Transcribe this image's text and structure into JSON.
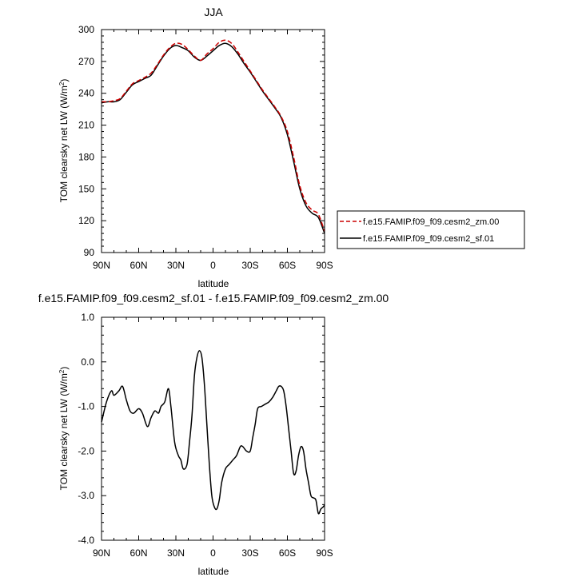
{
  "chart_data": [
    {
      "type": "line",
      "title": "JJA",
      "xlabel": "latitude",
      "ylabel": "TOM clearsky net LW (W/m²)",
      "xlim": [
        90,
        -90
      ],
      "ylim": [
        90,
        300
      ],
      "xticks": [
        "90N",
        "60N",
        "30N",
        "0",
        "30S",
        "60S",
        "90S"
      ],
      "yticks": [
        "90",
        "120",
        "150",
        "180",
        "210",
        "240",
        "270",
        "300"
      ],
      "legend_position": "right",
      "x": [
        90,
        85,
        80,
        75,
        70,
        65,
        60,
        55,
        50,
        45,
        40,
        35,
        30,
        25,
        20,
        15,
        10,
        5,
        0,
        -5,
        -10,
        -15,
        -20,
        -25,
        -30,
        -35,
        -40,
        -45,
        -50,
        -55,
        -60,
        -65,
        -70,
        -75,
        -80,
        -85,
        -90
      ],
      "series": [
        {
          "name": "f.e15.FAMIP.f09_f09.cesm2_zm.00",
          "color": "#cc0000",
          "dash": "dashed",
          "values": [
            232,
            232,
            233,
            235,
            242,
            249,
            252,
            255,
            259,
            267,
            276,
            283,
            287,
            286,
            281,
            275,
            271,
            277,
            282,
            288,
            290,
            287,
            279,
            270,
            261,
            252,
            243,
            235,
            227,
            218,
            204,
            180,
            153,
            137,
            130,
            126,
            110
          ]
        },
        {
          "name": "f.e15.FAMIP.f09_f09.cesm2_sf.01",
          "color": "#000000",
          "dash": "solid",
          "values": [
            231,
            232,
            232,
            234,
            241,
            248,
            251,
            254,
            257,
            266,
            275,
            282,
            285,
            283,
            280,
            274,
            271,
            275,
            280,
            285,
            287,
            284,
            277,
            268,
            260,
            251,
            242,
            234,
            226,
            217,
            201,
            176,
            150,
            134,
            127,
            123,
            108
          ]
        }
      ]
    },
    {
      "type": "line",
      "title": "f.e15.FAMIP.f09_f09.cesm2_sf.01 - f.e15.FAMIP.f09_f09.cesm2_zm.00",
      "xlabel": "latitude",
      "ylabel": "TOM clearsky net LW (W/m²)",
      "xlim": [
        90,
        -90
      ],
      "ylim": [
        -4.0,
        1.0
      ],
      "xticks": [
        "90N",
        "60N",
        "30N",
        "0",
        "30S",
        "60S",
        "90S"
      ],
      "yticks": [
        "-4.0",
        "-3.0",
        "-2.0",
        "-1.0",
        "0.0",
        "1.0"
      ],
      "series": [
        {
          "name": "",
          "color": "#000000",
          "values": [
            [
              90,
              -1.35
            ],
            [
              86,
              -0.9
            ],
            [
              82,
              -0.65
            ],
            [
              80,
              -0.75
            ],
            [
              76,
              -0.65
            ],
            [
              73,
              -0.55
            ],
            [
              70,
              -0.85
            ],
            [
              67,
              -1.1
            ],
            [
              64,
              -1.15
            ],
            [
              60,
              -1.05
            ],
            [
              57,
              -1.15
            ],
            [
              53,
              -1.45
            ],
            [
              50,
              -1.25
            ],
            [
              47,
              -1.1
            ],
            [
              44,
              -1.15
            ],
            [
              42,
              -1.0
            ],
            [
              39,
              -0.9
            ],
            [
              36,
              -0.6
            ],
            [
              34,
              -1.0
            ],
            [
              31,
              -1.8
            ],
            [
              28,
              -2.1
            ],
            [
              26,
              -2.2
            ],
            [
              24,
              -2.4
            ],
            [
              21,
              -2.3
            ],
            [
              19,
              -1.8
            ],
            [
              17,
              -1.2
            ],
            [
              15,
              -0.3
            ],
            [
              13,
              0.1
            ],
            [
              11,
              0.25
            ],
            [
              9,
              0.1
            ],
            [
              7,
              -0.5
            ],
            [
              5,
              -1.4
            ],
            [
              3,
              -2.3
            ],
            [
              1,
              -3.0
            ],
            [
              -1,
              -3.25
            ],
            [
              -3,
              -3.3
            ],
            [
              -5,
              -3.1
            ],
            [
              -7,
              -2.7
            ],
            [
              -10,
              -2.4
            ],
            [
              -13,
              -2.3
            ],
            [
              -16,
              -2.2
            ],
            [
              -19,
              -2.1
            ],
            [
              -22,
              -1.9
            ],
            [
              -24,
              -1.9
            ],
            [
              -27,
              -2.0
            ],
            [
              -30,
              -2.0
            ],
            [
              -32,
              -1.7
            ],
            [
              -34,
              -1.4
            ],
            [
              -36,
              -1.05
            ],
            [
              -39,
              -1.0
            ],
            [
              -42,
              -0.95
            ],
            [
              -45,
              -0.9
            ],
            [
              -48,
              -0.8
            ],
            [
              -51,
              -0.65
            ],
            [
              -53,
              -0.55
            ],
            [
              -55,
              -0.55
            ],
            [
              -57,
              -0.65
            ],
            [
              -59,
              -1.0
            ],
            [
              -61,
              -1.5
            ],
            [
              -63,
              -2.0
            ],
            [
              -65,
              -2.5
            ],
            [
              -67,
              -2.45
            ],
            [
              -69,
              -2.1
            ],
            [
              -71,
              -1.9
            ],
            [
              -73,
              -2.0
            ],
            [
              -75,
              -2.4
            ],
            [
              -77,
              -2.7
            ],
            [
              -79,
              -3.0
            ],
            [
              -81,
              -3.05
            ],
            [
              -83,
              -3.1
            ],
            [
              -85,
              -3.4
            ],
            [
              -87,
              -3.3
            ],
            [
              -89,
              -3.25
            ],
            [
              -90,
              -3.2
            ]
          ]
        }
      ]
    }
  ]
}
